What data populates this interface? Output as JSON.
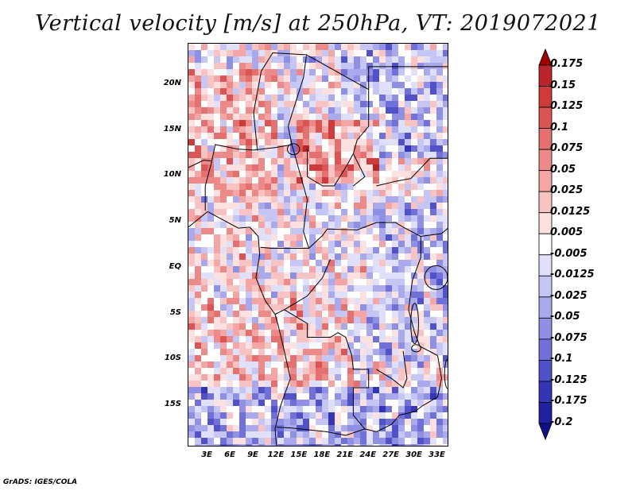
{
  "title": "Vertical velocity [m/s] at 250hPa, VT: 2019072021",
  "credit": "GrADS: IGES/COLA",
  "lat_labels": [
    "20N",
    "15N",
    "10N",
    "5N",
    "EQ",
    "5S",
    "10S",
    "15S"
  ],
  "lat_values": [
    20,
    15,
    10,
    5,
    0,
    -5,
    -10,
    -15
  ],
  "lon_labels": [
    "3E",
    "6E",
    "9E",
    "12E",
    "15E",
    "18E",
    "21E",
    "24E",
    "27E",
    "30E",
    "33E"
  ],
  "lon_values": [
    3,
    6,
    9,
    12,
    15,
    18,
    21,
    24,
    27,
    30,
    33
  ],
  "extent": {
    "lon": [
      0.5,
      34.5
    ],
    "lat": [
      -19.5,
      24.5
    ]
  },
  "colorbar": {
    "labels": [
      "0.175",
      "0.15",
      "0.125",
      "0.1",
      "0.075",
      "0.05",
      "0.025",
      "0.0125",
      "0.005",
      "-0.005",
      "-0.0125",
      "-0.025",
      "-0.05",
      "-0.075",
      "-0.1",
      "-0.125",
      "-0.175",
      "-0.2"
    ],
    "colors": [
      "#a00000",
      "#b8252a",
      "#cd3b3b",
      "#dc5555",
      "#e57070",
      "#ec8a8a",
      "#f4a6a6",
      "#f8c3c3",
      "#fde0e0",
      "#ffffff",
      "#e0e0fa",
      "#c6c6f4",
      "#a9a9ec",
      "#8f8fe4",
      "#7070d8",
      "#5151c8",
      "#3434b4",
      "#2020a0",
      "#10108a"
    ]
  }
}
